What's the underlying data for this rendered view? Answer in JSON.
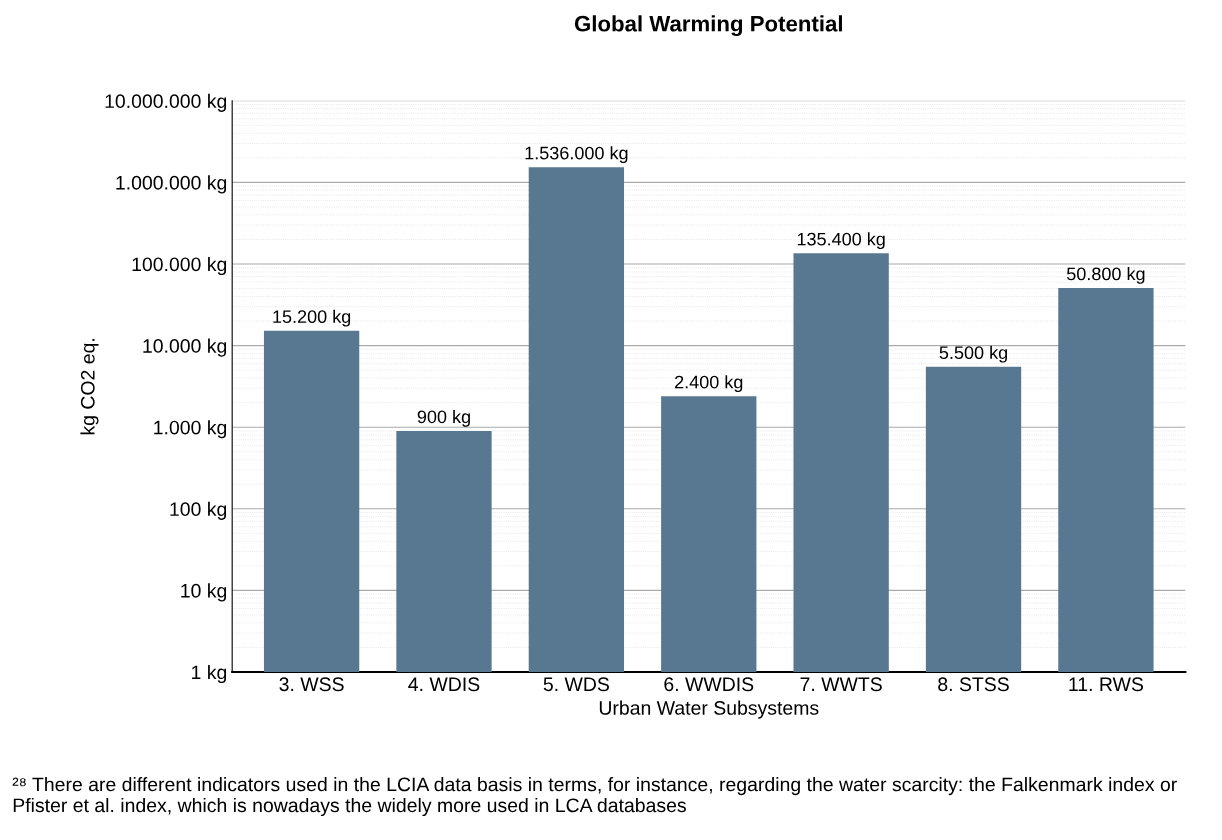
{
  "chart_data": {
    "type": "bar",
    "title": "Global Warming Potential",
    "xlabel": "Urban Water Subsystems",
    "ylabel": "kg CO2 eq.",
    "categories": [
      "3. WSS",
      "4. WDIS",
      "5. WDS",
      "6. WWDIS",
      "7. WWTS",
      "8. STSS",
      "11. RWS"
    ],
    "values": [
      15200,
      900,
      1536000,
      2400,
      135400,
      5500,
      50800
    ],
    "value_labels": [
      "15.200 kg",
      "900 kg",
      "1.536.000 kg",
      "2.400 kg",
      "135.400 kg",
      "5.500 kg",
      "50.800 kg"
    ],
    "color": "#587790",
    "log": "y",
    "ylim": [
      1,
      10000000
    ],
    "yticks": [
      {
        "value": 1,
        "label": "1 kg"
      },
      {
        "value": 10,
        "label": "10 kg"
      },
      {
        "value": 100,
        "label": "100 kg"
      },
      {
        "value": 1000,
        "label": "1.000 kg"
      },
      {
        "value": 10000,
        "label": "10.000 kg"
      },
      {
        "value": 100000,
        "label": "100.000 kg"
      },
      {
        "value": 1000000,
        "label": "1.000.000 kg"
      },
      {
        "value": 10000000,
        "label": "10.000.000 kg"
      }
    ],
    "grid": "y",
    "annotations": [
      "²⁸ There are different indicators used in the LCIA data basis in terms, for instance, regarding the water scarcity: the Falkenmark index or Pfister et al. index, which is nowadays the widely more used in LCA databases"
    ]
  }
}
